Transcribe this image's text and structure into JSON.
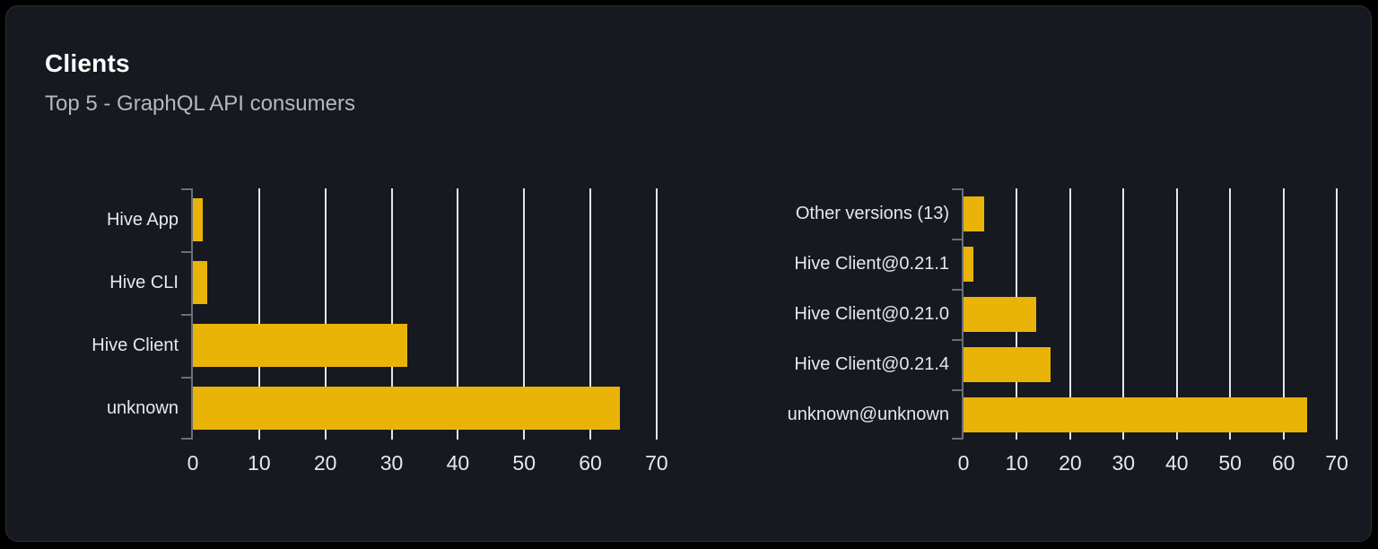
{
  "card": {
    "title": "Clients",
    "subtitle": "Top 5 - GraphQL API consumers"
  },
  "colors": {
    "page_background": "#000000",
    "card_background": "#16191f",
    "card_border": "#2a2e35",
    "bar": "#eab308",
    "gridline": "#e2e6ee",
    "axis": "#6a7078",
    "tick_label": "#e6e8eb",
    "category_label": "#e6e8eb"
  },
  "chart_data": [
    {
      "type": "bar",
      "orientation": "horizontal",
      "name": "clients-top5",
      "categories": [
        "Hive App",
        "Hive CLI",
        "Hive Client",
        "unknown"
      ],
      "values": [
        1.5,
        2.1,
        32.3,
        64.4
      ],
      "xlabel": "",
      "ylabel": "",
      "xlim": [
        0,
        71.5
      ],
      "xticks": [
        0,
        10,
        20,
        30,
        40,
        50,
        60,
        70
      ],
      "grid": true,
      "legend": false
    },
    {
      "type": "bar",
      "orientation": "horizontal",
      "name": "client-versions-top5",
      "categories": [
        "Other versions (13)",
        "Hive Client@0.21.1",
        "Hive Client@0.21.0",
        "Hive Client@0.21.4",
        "unknown@unknown"
      ],
      "values": [
        3.9,
        1.8,
        13.7,
        16.4,
        64.4
      ],
      "xlabel": "",
      "ylabel": "",
      "xlim": [
        0,
        71.5
      ],
      "xticks": [
        0,
        10,
        20,
        30,
        40,
        50,
        60,
        70
      ],
      "grid": true,
      "legend": false
    }
  ]
}
